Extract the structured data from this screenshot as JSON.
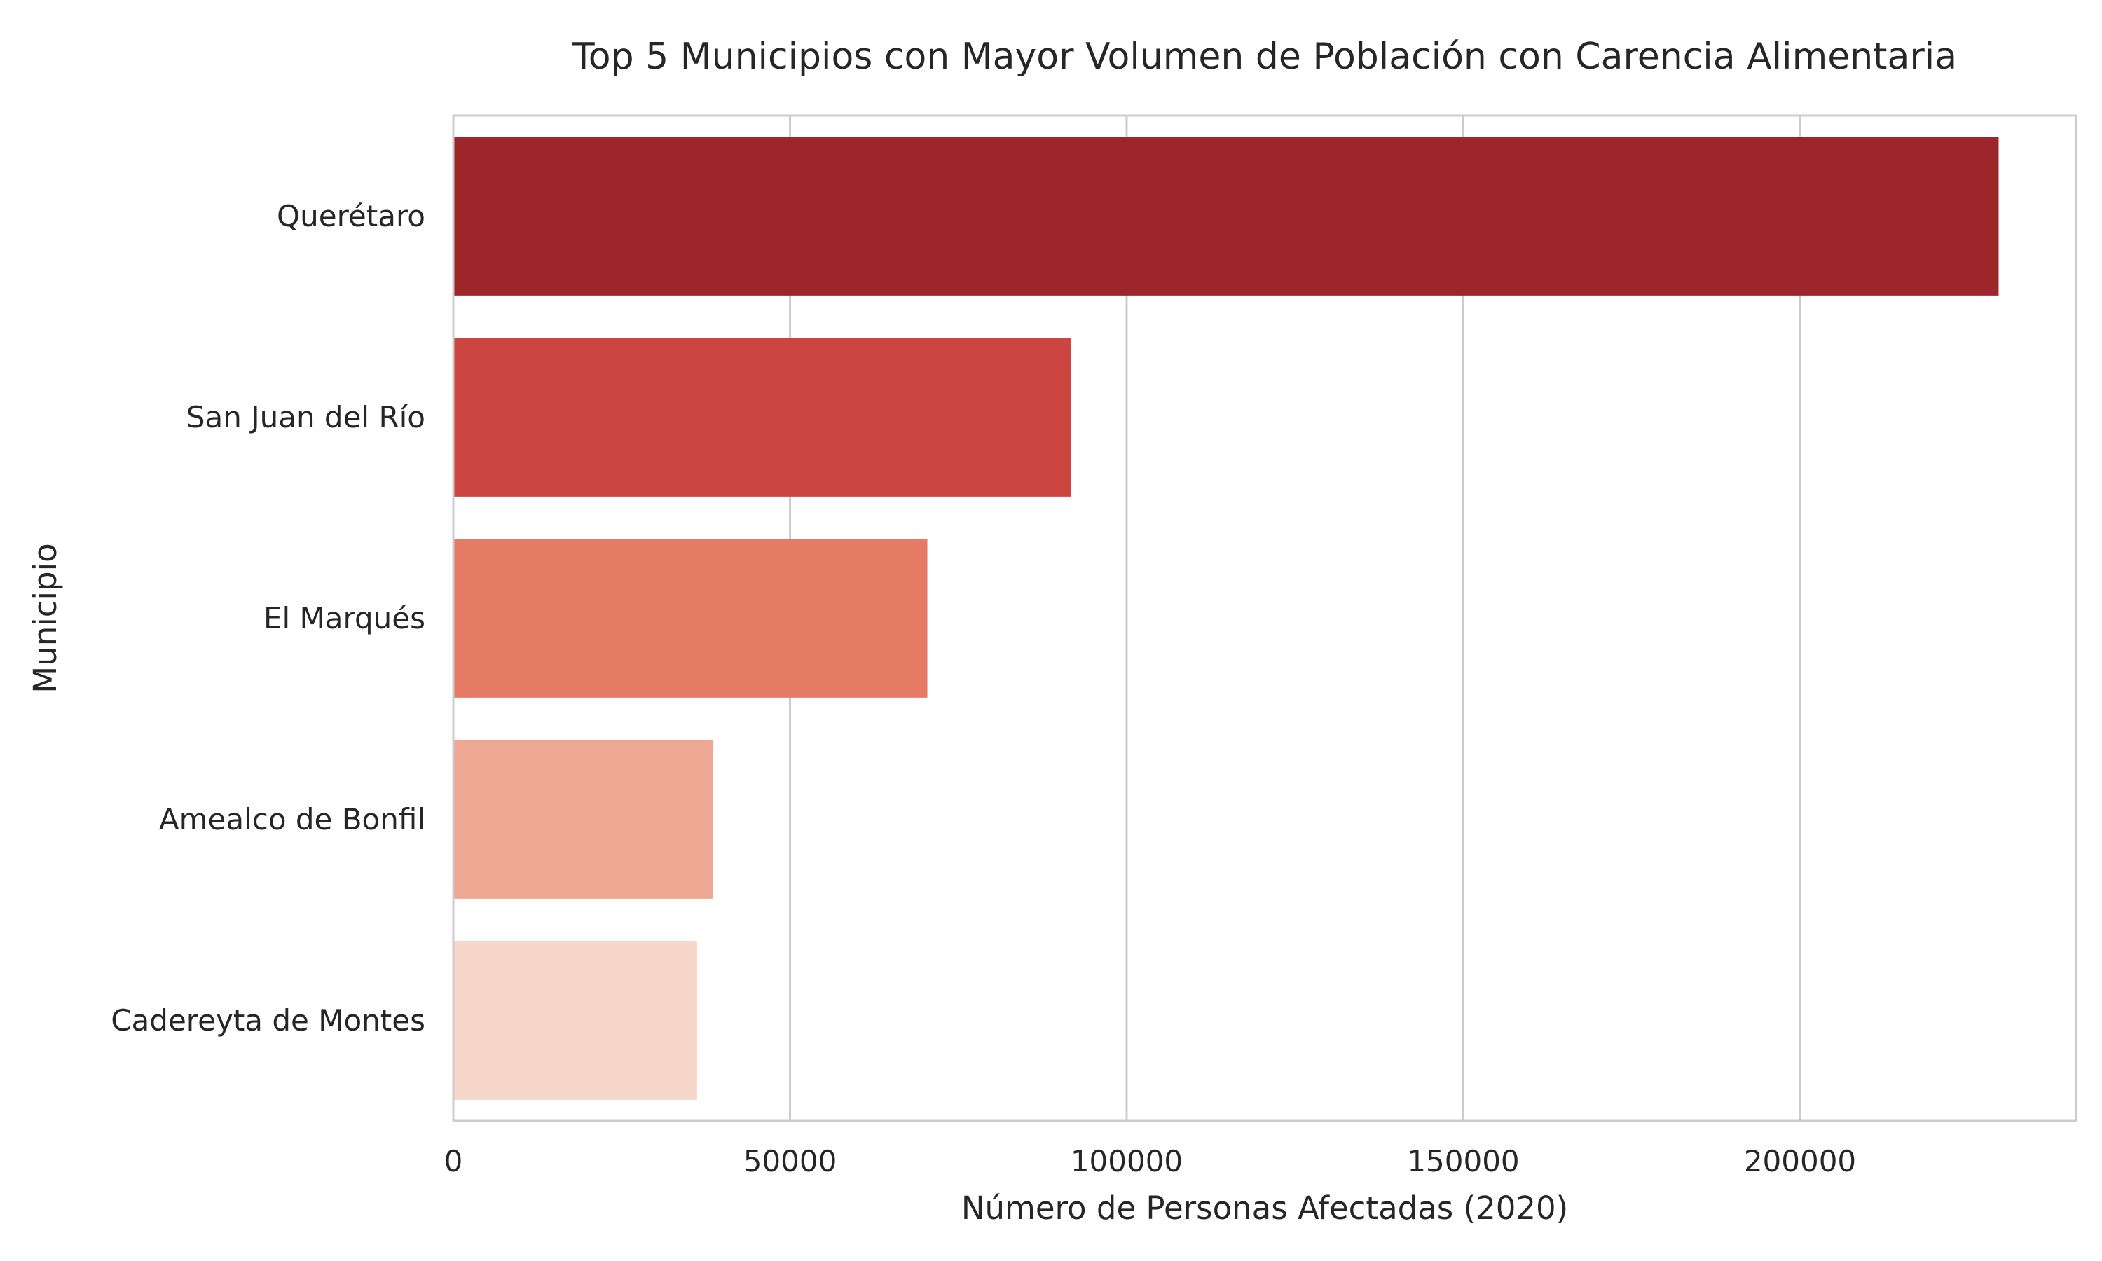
{
  "chart_data": {
    "type": "bar",
    "orientation": "horizontal",
    "title": "Top 5 Municipios con Mayor Volumen de Población con Carencia Alimentaria",
    "xlabel": "Número de Personas Afectadas (2020)",
    "ylabel": "Municipio",
    "categories": [
      "Querétaro",
      "San Juan del Río",
      "El Marqués",
      "Amealco de Bonfil",
      "Cadereyta de Montes"
    ],
    "values": [
      229500,
      91700,
      70400,
      38500,
      36200
    ],
    "colors": [
      "#9d262b",
      "#cb4641",
      "#e67b65",
      "#eda792",
      "#f7d7ca"
    ],
    "xlim": [
      0,
      241000
    ],
    "xticks": [
      0,
      50000,
      100000,
      150000,
      200000
    ],
    "xtick_labels": [
      "0",
      "50000",
      "100000",
      "150000",
      "200000"
    ],
    "grid": "vertical",
    "legend": "none"
  }
}
